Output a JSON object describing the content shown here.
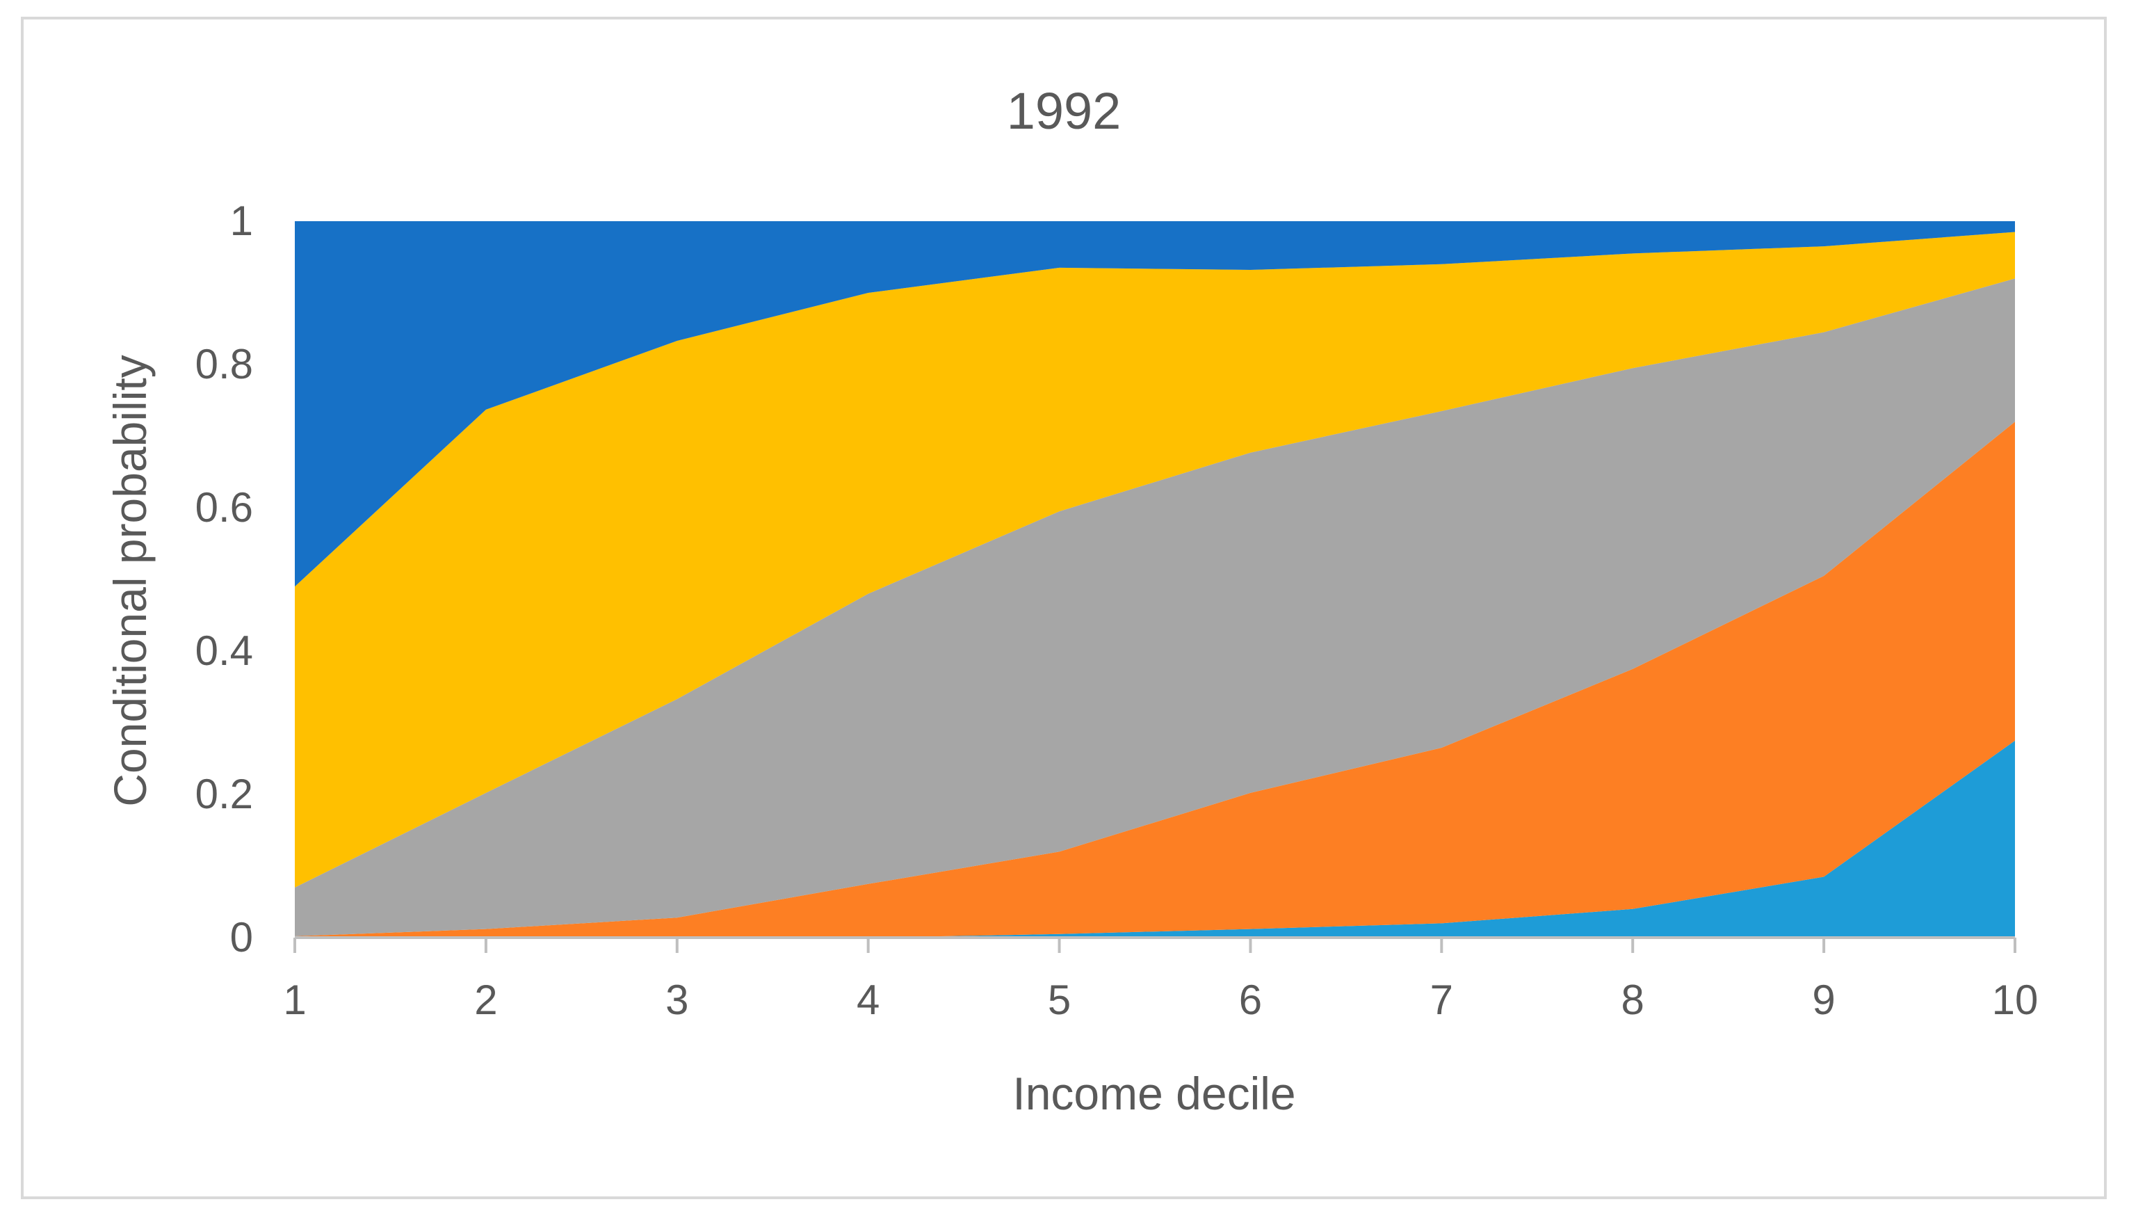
{
  "chart_data": {
    "type": "area",
    "stacked": true,
    "title": "1992",
    "xlabel": "Income decile",
    "ylabel": "Conditional probability",
    "x": [
      1,
      2,
      3,
      4,
      5,
      6,
      7,
      8,
      9,
      10
    ],
    "ylim": [
      0,
      1
    ],
    "yticks": [
      "0",
      "0.2",
      "0.4",
      "0.6",
      "0.8",
      "1"
    ],
    "grid": false,
    "legend": "none",
    "series": [
      {
        "color": "#1e9cd7",
        "values": [
          0.0,
          0.0,
          0.0,
          0.0,
          0.005,
          0.012,
          0.02,
          0.04,
          0.085,
          0.275
        ]
      },
      {
        "color": "#fd7f23",
        "values": [
          0.002,
          0.012,
          0.028,
          0.075,
          0.115,
          0.19,
          0.245,
          0.335,
          0.42,
          0.445
        ]
      },
      {
        "color": "#a6a6a6",
        "values": [
          0.068,
          0.19,
          0.305,
          0.405,
          0.475,
          0.475,
          0.47,
          0.42,
          0.34,
          0.2
        ]
      },
      {
        "color": "#ffc000",
        "values": [
          0.42,
          0.535,
          0.5,
          0.42,
          0.34,
          0.255,
          0.205,
          0.16,
          0.12,
          0.065
        ]
      },
      {
        "color": "#1771c6",
        "values": [
          0.51,
          0.263,
          0.167,
          0.1,
          0.065,
          0.068,
          0.06,
          0.045,
          0.035,
          0.015
        ]
      }
    ]
  }
}
